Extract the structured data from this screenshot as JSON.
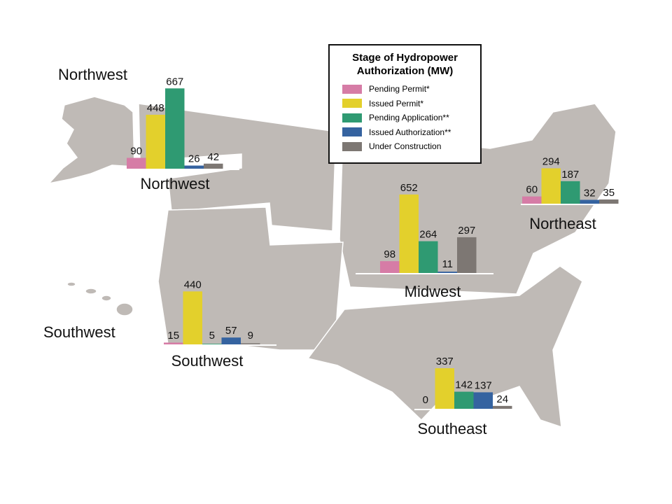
{
  "legend": {
    "title": "Stage of Hydropower Authorization (MW)",
    "items": [
      {
        "name": "Pending Permit*",
        "color": "#d67ca6"
      },
      {
        "name": "Issued Permit*",
        "color": "#e3d02c"
      },
      {
        "name": "Pending Application**",
        "color": "#2f9a72"
      },
      {
        "name": "Issued Authorization**",
        "color": "#3563a0"
      },
      {
        "name": "Under Construction",
        "color": "#7d7773"
      }
    ]
  },
  "map_labels": [
    "Northwest",
    "Southwest"
  ],
  "regions": [
    {
      "name": "Northwest",
      "values": [
        90,
        448,
        667,
        26,
        42
      ]
    },
    {
      "name": "Northeast",
      "values": [
        60,
        294,
        187,
        32,
        35
      ]
    },
    {
      "name": "Midwest",
      "values": [
        98,
        652,
        264,
        11,
        297
      ]
    },
    {
      "name": "Southwest",
      "values": [
        15,
        440,
        5,
        57,
        9
      ]
    },
    {
      "name": "Southeast",
      "values": [
        0,
        337,
        142,
        137,
        24
      ]
    }
  ]
}
